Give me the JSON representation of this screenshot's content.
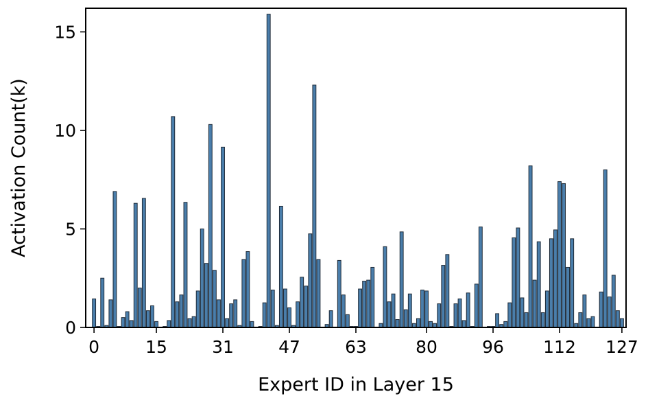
{
  "chart_data": {
    "type": "bar",
    "title": "",
    "xlabel": "Expert ID in Layer 15",
    "ylabel": "Activation Count(k)",
    "xlim": [
      -2,
      128
    ],
    "ylim": [
      0,
      16.2
    ],
    "x_ticks": [
      0,
      15,
      31,
      47,
      63,
      80,
      96,
      112,
      127
    ],
    "y_ticks": [
      0,
      5,
      10,
      15
    ],
    "grid": false,
    "legend": "none",
    "bar_color": "#4a7eab",
    "bar_edge_color": "#1f2b38",
    "x": [
      0,
      1,
      2,
      3,
      4,
      5,
      6,
      7,
      8,
      9,
      10,
      11,
      12,
      13,
      14,
      15,
      16,
      17,
      18,
      19,
      20,
      21,
      22,
      23,
      24,
      25,
      26,
      27,
      28,
      29,
      30,
      31,
      32,
      33,
      34,
      35,
      36,
      37,
      38,
      39,
      40,
      41,
      42,
      43,
      44,
      45,
      46,
      47,
      48,
      49,
      50,
      51,
      52,
      53,
      54,
      55,
      56,
      57,
      58,
      59,
      60,
      61,
      62,
      63,
      64,
      65,
      66,
      67,
      68,
      69,
      70,
      71,
      72,
      73,
      74,
      75,
      76,
      77,
      78,
      79,
      80,
      81,
      82,
      83,
      84,
      85,
      86,
      87,
      88,
      89,
      90,
      91,
      92,
      93,
      94,
      95,
      96,
      97,
      98,
      99,
      100,
      101,
      102,
      103,
      104,
      105,
      106,
      107,
      108,
      109,
      110,
      111,
      112,
      113,
      114,
      115,
      116,
      117,
      118,
      119,
      120,
      121,
      122,
      123,
      124,
      125,
      126,
      127
    ],
    "values": [
      1.45,
      0.05,
      2.5,
      0.1,
      1.4,
      6.9,
      0.05,
      0.5,
      0.8,
      0.35,
      6.3,
      2.0,
      6.55,
      0.85,
      1.1,
      0.3,
      0.02,
      0.05,
      0.35,
      10.7,
      1.3,
      1.65,
      6.35,
      0.45,
      0.55,
      1.85,
      5.0,
      3.25,
      10.3,
      2.9,
      1.4,
      9.15,
      0.45,
      1.2,
      1.4,
      0.1,
      3.45,
      3.85,
      0.3,
      0.02,
      0.05,
      1.25,
      15.9,
      1.9,
      0.1,
      6.15,
      1.95,
      1.0,
      0.1,
      1.3,
      2.55,
      2.1,
      4.75,
      12.3,
      3.45,
      0.02,
      0.15,
      0.85,
      0.02,
      3.4,
      1.65,
      0.65,
      0.05,
      0.05,
      1.95,
      2.35,
      2.4,
      3.05,
      0.02,
      0.2,
      4.1,
      1.3,
      1.7,
      0.4,
      4.85,
      0.9,
      1.7,
      0.2,
      0.45,
      1.9,
      1.85,
      0.3,
      0.2,
      1.2,
      3.15,
      3.7,
      0.05,
      1.2,
      1.45,
      0.35,
      1.75,
      0.05,
      2.2,
      5.1,
      0.02,
      0.05,
      0.05,
      0.7,
      0.15,
      0.3,
      1.25,
      4.55,
      5.05,
      1.5,
      0.75,
      8.2,
      2.4,
      4.35,
      0.75,
      1.85,
      4.5,
      4.95,
      7.4,
      7.3,
      3.05,
      4.5,
      0.2,
      0.75,
      1.65,
      0.45,
      0.55,
      0.02,
      1.8,
      8.0,
      1.55,
      2.65,
      0.85,
      0.45
    ]
  }
}
